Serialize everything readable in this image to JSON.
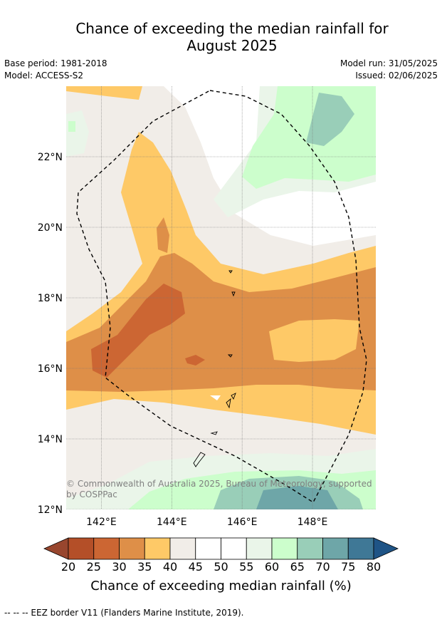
{
  "header": {
    "title_line1": "Chance of exceeding the median rainfall for",
    "title_line2": "August 2025",
    "base_period": "Base period: 1981-2018",
    "model": "Model: ACCESS-S2",
    "model_run": "Model run: 31/05/2025",
    "issued": "Issued: 02/06/2025"
  },
  "chart_data": {
    "type": "heatmap",
    "title": "Chance of exceeding the median rainfall for August 2025",
    "xlabel": "",
    "ylabel": "",
    "xlim": [
      141,
      149.8
    ],
    "ylim": [
      12,
      24
    ],
    "x_ticks": [
      "142°E",
      "144°E",
      "146°E",
      "148°E"
    ],
    "x_tick_values": [
      142,
      144,
      146,
      148
    ],
    "y_ticks": [
      "12°N",
      "14°N",
      "16°N",
      "18°N",
      "20°N",
      "22°N"
    ],
    "y_tick_values": [
      12,
      14,
      16,
      18,
      20,
      22
    ],
    "grid": true,
    "colorbar": {
      "label": "Chance of exceeding median rainfall (%)",
      "bounds": [
        20,
        25,
        30,
        35,
        40,
        45,
        50,
        55,
        60,
        65,
        70,
        75,
        80
      ],
      "tick_labels": [
        "20",
        "25",
        "30",
        "35",
        "40",
        "45",
        "50",
        "55",
        "60",
        "65",
        "70",
        "75",
        "80"
      ],
      "colors": [
        "#b44f28",
        "#cc6633",
        "#de8f48",
        "#fec967",
        "#f1ede8",
        "#ffffff",
        "#ffffff",
        "#eaf5e9",
        "#ccfecc",
        "#99ceb8",
        "#6ea6a8",
        "#3f7896"
      ],
      "under_color": "#98462e",
      "over_color": "#1f5486"
    },
    "legend": "bottom"
  },
  "annotations": {
    "copyright": "© Commonwealth of Australia 2025, Bureau of Meteorology, supported by COSPPac",
    "footnote": "--  --  -- EEZ border V11 (Flanders Marine Institute, 2019)."
  }
}
